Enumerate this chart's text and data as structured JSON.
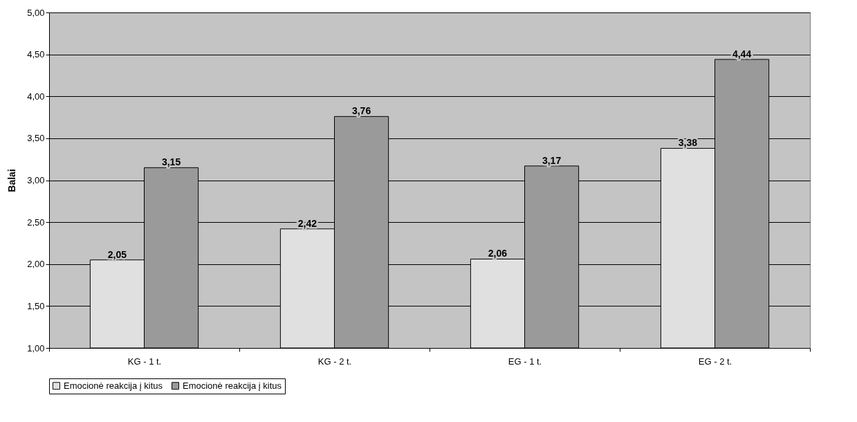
{
  "chart_data": {
    "type": "bar",
    "ylabel": "Balai",
    "categories": [
      "KG - 1 t.",
      "KG - 2 t.",
      "EG - 1 t.",
      "EG - 2 t."
    ],
    "series": [
      {
        "name": "Emocionė reakcija į kitus",
        "color": "#e0e0e0",
        "values": [
          2.05,
          2.42,
          2.06,
          3.38
        ],
        "value_labels": [
          "2,05",
          "2,42",
          "2,06",
          "3,38"
        ]
      },
      {
        "name": "Emocionė reakcija į kitus",
        "color": "#9a9a9a",
        "values": [
          3.15,
          3.76,
          3.17,
          4.44
        ],
        "value_labels": [
          "3,15",
          "3,76",
          "3,17",
          "4,44"
        ]
      }
    ],
    "ylim": [
      1,
      5
    ],
    "yticks": [
      {
        "value": 1,
        "label": "1,00"
      },
      {
        "value": 1.5,
        "label": "1,50"
      },
      {
        "value": 2,
        "label": "2,00"
      },
      {
        "value": 2.5,
        "label": "2,50"
      },
      {
        "value": 3,
        "label": "3,00"
      },
      {
        "value": 3.5,
        "label": "3,50"
      },
      {
        "value": 4,
        "label": "4,00"
      },
      {
        "value": 4.5,
        "label": "4,50"
      },
      {
        "value": 5,
        "label": "5,00"
      }
    ],
    "grid": "y",
    "legend": "bottom"
  }
}
